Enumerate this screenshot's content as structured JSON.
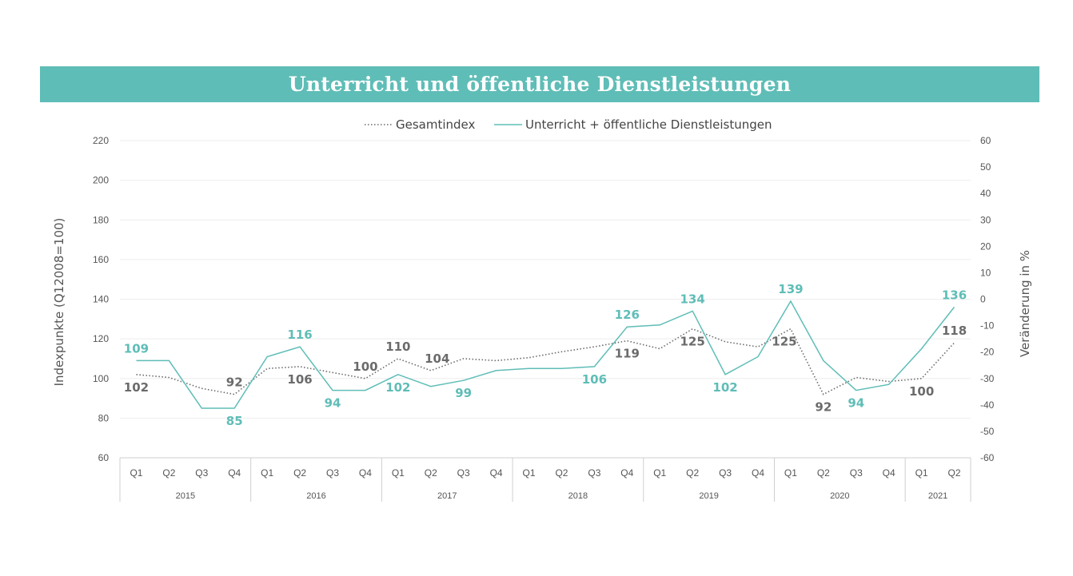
{
  "header": {
    "title": "Unterricht und öffentliche Dienstleistungen"
  },
  "colors": {
    "banner": "#5fbdb7",
    "sector": "#5fbdb7",
    "total": "#6b6b6b"
  },
  "chart_data": {
    "type": "line",
    "legend": [
      "Gesamtindex",
      "Unterricht + öffentliche Dienstleistungen"
    ],
    "legend_position": "top-center",
    "ylabel": "Indexpunkte (Q12008=100)",
    "y2label": "Veränderung in %",
    "ylim": [
      60,
      220
    ],
    "y2lim": [
      -60,
      60
    ],
    "yticks": [
      220,
      200,
      180,
      160,
      140,
      120,
      100,
      80,
      60
    ],
    "y2ticks": [
      60,
      50,
      40,
      30,
      20,
      10,
      0,
      -10,
      -20,
      -30,
      -40,
      -50,
      -60
    ],
    "quarters": [
      "Q1",
      "Q2",
      "Q3",
      "Q4",
      "Q1",
      "Q2",
      "Q3",
      "Q4",
      "Q1",
      "Q2",
      "Q3",
      "Q4",
      "Q1",
      "Q2",
      "Q3",
      "Q4",
      "Q1",
      "Q2",
      "Q3",
      "Q4",
      "Q1",
      "Q2",
      "Q3",
      "Q4",
      "Q1",
      "Q2"
    ],
    "years": [
      {
        "label": "2015",
        "count": 4
      },
      {
        "label": "2016",
        "count": 4
      },
      {
        "label": "2017",
        "count": 4
      },
      {
        "label": "2018",
        "count": 4
      },
      {
        "label": "2019",
        "count": 4
      },
      {
        "label": "2020",
        "count": 4
      },
      {
        "label": "2021",
        "count": 2
      }
    ],
    "series": [
      {
        "name": "Gesamtindex",
        "style": "dotted",
        "values": [
          102,
          100.5,
          95,
          92,
          105,
          106,
          103,
          100,
          110,
          104,
          110,
          109,
          110.5,
          113.5,
          116,
          119,
          115,
          125,
          118.5,
          116,
          125,
          92,
          100.5,
          98.5,
          100,
          118
        ],
        "labels": [
          {
            "i": 0,
            "text": "102",
            "pos": "below"
          },
          {
            "i": 3,
            "text": "92",
            "pos": "above"
          },
          {
            "i": 5,
            "text": "106",
            "pos": "below"
          },
          {
            "i": 7,
            "text": "100",
            "pos": "above"
          },
          {
            "i": 8,
            "text": "110",
            "pos": "above"
          },
          {
            "i": 9,
            "text": "104",
            "pos": "above-right"
          },
          {
            "i": 15,
            "text": "119",
            "pos": "below"
          },
          {
            "i": 17,
            "text": "125",
            "pos": "below"
          },
          {
            "i": 20,
            "text": "125",
            "pos": "below-left"
          },
          {
            "i": 21,
            "text": "92",
            "pos": "below"
          },
          {
            "i": 24,
            "text": "100",
            "pos": "below"
          },
          {
            "i": 25,
            "text": "118",
            "pos": "above"
          }
        ]
      },
      {
        "name": "Unterricht + öffentliche Dienstleistungen",
        "style": "solid",
        "values": [
          109,
          109,
          85,
          85,
          111,
          116,
          94,
          94,
          102,
          96,
          99,
          104,
          105,
          105,
          106,
          126,
          127,
          134,
          102,
          111,
          139,
          109,
          94,
          97,
          115,
          136
        ],
        "labels": [
          {
            "i": 0,
            "text": "109",
            "pos": "above"
          },
          {
            "i": 3,
            "text": "85",
            "pos": "below"
          },
          {
            "i": 5,
            "text": "116",
            "pos": "above"
          },
          {
            "i": 6,
            "text": "94",
            "pos": "below"
          },
          {
            "i": 8,
            "text": "102",
            "pos": "below"
          },
          {
            "i": 10,
            "text": "99",
            "pos": "below"
          },
          {
            "i": 14,
            "text": "106",
            "pos": "below"
          },
          {
            "i": 15,
            "text": "126",
            "pos": "above"
          },
          {
            "i": 17,
            "text": "134",
            "pos": "above"
          },
          {
            "i": 18,
            "text": "102",
            "pos": "below"
          },
          {
            "i": 20,
            "text": "139",
            "pos": "above"
          },
          {
            "i": 22,
            "text": "94",
            "pos": "below"
          },
          {
            "i": 25,
            "text": "136",
            "pos": "above"
          }
        ]
      }
    ]
  }
}
